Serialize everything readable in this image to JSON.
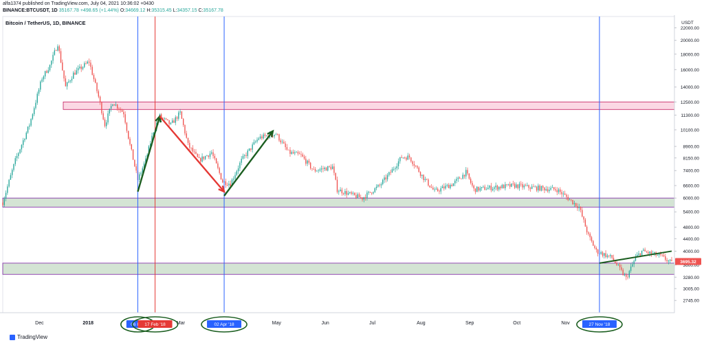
{
  "header": {
    "published": "alfa1374 published on TradingView.com, July 04, 2021 10:36:02 +0430",
    "symbol": "BINANCE:BTCUSDT, 1D",
    "last": "35167.78",
    "change": "+498.65 (+1.44%)",
    "o_label": "O:",
    "o": "34669.12",
    "h_label": "H:",
    "h": "35315.45",
    "l_label": "L:",
    "l": "34357.15",
    "c_label": "C:",
    "c": "35167.78"
  },
  "footer": {
    "brand": "TradingView"
  },
  "chart_data": {
    "type": "candlestick",
    "title": "Bitcoin / TetherUS, 1D, BINANCE",
    "currency_label": "USDT",
    "scale": "log",
    "ylim": [
      2500,
      24000
    ],
    "y_ticks": [
      "22000.00",
      "20000.00",
      "18000.00",
      "16000.00",
      "14000.00",
      "12500.00",
      "11300.00",
      "10100.00",
      "8900.00",
      "8150.00",
      "7400.00",
      "6600.00",
      "6000.00",
      "5400.00",
      "4800.00",
      "4400.00",
      "4000.00",
      "3600.00",
      "3280.00",
      "3005.00",
      "2745.00"
    ],
    "x_ticks": [
      "Dec",
      "2018",
      "Mar",
      "May",
      "Jun",
      "Jul",
      "Aug",
      "Sep",
      "Oct",
      "Nov"
    ],
    "x_range": [
      "2017-11-12",
      "2019-01-12"
    ],
    "price_points": [
      [
        "2017-11-12",
        5800
      ],
      [
        "2017-11-20",
        8000
      ],
      [
        "2017-11-29",
        10500
      ],
      [
        "2017-12-07",
        15000
      ],
      [
        "2017-12-12",
        16500
      ],
      [
        "2017-12-17",
        19500
      ],
      [
        "2017-12-22",
        14000
      ],
      [
        "2017-12-27",
        15500
      ],
      [
        "2018-01-06",
        17000
      ],
      [
        "2018-01-12",
        13000
      ],
      [
        "2018-01-16",
        10500
      ],
      [
        "2018-01-21",
        12500
      ],
      [
        "2018-01-28",
        11500
      ],
      [
        "2018-02-01",
        9000
      ],
      [
        "2018-02-06",
        6900
      ],
      [
        "2018-02-11",
        8000
      ],
      [
        "2018-02-16",
        10000
      ],
      [
        "2018-02-20",
        11200
      ],
      [
        "2018-02-27",
        10500
      ],
      [
        "2018-03-05",
        11500
      ],
      [
        "2018-03-10",
        9000
      ],
      [
        "2018-03-17",
        8000
      ],
      [
        "2018-03-25",
        8500
      ],
      [
        "2018-04-01",
        6800
      ],
      [
        "2018-04-06",
        6700
      ],
      [
        "2018-04-13",
        8000
      ],
      [
        "2018-04-24",
        9500
      ],
      [
        "2018-05-05",
        9800
      ],
      [
        "2018-05-13",
        8500
      ],
      [
        "2018-05-21",
        8300
      ],
      [
        "2018-05-29",
        7400
      ],
      [
        "2018-06-10",
        7600
      ],
      [
        "2018-06-13",
        6400
      ],
      [
        "2018-06-24",
        6100
      ],
      [
        "2018-06-29",
        6000
      ],
      [
        "2018-07-10",
        6600
      ],
      [
        "2018-07-17",
        7300
      ],
      [
        "2018-07-24",
        8200
      ],
      [
        "2018-07-29",
        8200
      ],
      [
        "2018-08-07",
        7000
      ],
      [
        "2018-08-14",
        6300
      ],
      [
        "2018-08-26",
        6700
      ],
      [
        "2018-09-03",
        7300
      ],
      [
        "2018-09-08",
        6400
      ],
      [
        "2018-09-20",
        6500
      ],
      [
        "2018-10-04",
        6600
      ],
      [
        "2018-10-15",
        6500
      ],
      [
        "2018-10-31",
        6400
      ],
      [
        "2018-11-14",
        5600
      ],
      [
        "2018-11-20",
        4500
      ],
      [
        "2018-11-25",
        4000
      ],
      [
        "2018-12-05",
        3800
      ],
      [
        "2018-12-14",
        3250
      ],
      [
        "2018-12-20",
        3800
      ],
      [
        "2018-12-24",
        4000
      ],
      [
        "2019-01-05",
        3850
      ],
      [
        "2019-01-12",
        3650
      ]
    ],
    "last_price": 3695.32,
    "last_price_label": "3695.32",
    "zones": [
      {
        "color": "pink",
        "from": 11800,
        "to": 12500
      },
      {
        "color": "green",
        "from": 5600,
        "to": 6000
      },
      {
        "color": "green",
        "from": 3350,
        "to": 3650
      }
    ],
    "vertical_lines": [
      {
        "date": "2018-02-06",
        "color": "#2962ff",
        "label": "06 Feb"
      },
      {
        "date": "2018-02-17",
        "color": "#e53935",
        "label": "17 Feb '18"
      },
      {
        "date": "2018-04-02",
        "color": "#2962ff",
        "label": "02 Apr '18"
      },
      {
        "date": "2018-11-27",
        "color": "#2962ff",
        "label": "27 Nov '18"
      }
    ],
    "arrows": [
      {
        "color": "#1b5e20",
        "from": [
          "2018-02-06",
          6300
        ],
        "to": [
          "2018-02-20",
          11200
        ]
      },
      {
        "color": "#e53935",
        "from": [
          "2018-02-20",
          11200
        ],
        "to": [
          "2018-04-02",
          6300
        ]
      },
      {
        "color": "#1b5e20",
        "from": [
          "2018-04-02",
          6100
        ],
        "to": [
          "2018-05-03",
          10000
        ]
      }
    ],
    "trend_line": {
      "color": "#1b5e20",
      "from": [
        "2018-11-27",
        3650
      ],
      "to": [
        "2019-01-12",
        4000
      ]
    }
  }
}
